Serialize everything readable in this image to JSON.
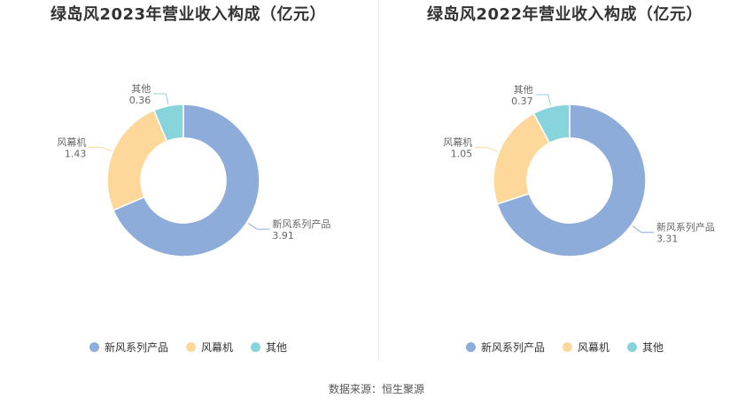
{
  "colors": {
    "新风系列产品": "#8eacda",
    "风幕机": "#fdd89a",
    "其他": "#88d4dc"
  },
  "chart_data": [
    {
      "type": "pie",
      "variant": "donut",
      "title": "绿岛风2023年营业收入构成（亿元）",
      "slices": [
        {
          "name": "新风系列产品",
          "value": 3.91,
          "value_label": "3.91"
        },
        {
          "name": "风幕机",
          "value": 1.43,
          "value_label": "1.43"
        },
        {
          "name": "其他",
          "value": 0.36,
          "value_label": "0.36"
        }
      ],
      "legend": [
        "新风系列产品",
        "风幕机",
        "其他"
      ],
      "legend_position": "bottom"
    },
    {
      "type": "pie",
      "variant": "donut",
      "title": "绿岛风2022年营业收入构成（亿元）",
      "slices": [
        {
          "name": "新风系列产品",
          "value": 3.31,
          "value_label": "3.31"
        },
        {
          "name": "风幕机",
          "value": 1.05,
          "value_label": "1.05"
        },
        {
          "name": "其他",
          "value": 0.37,
          "value_label": "0.37"
        }
      ],
      "legend": [
        "新风系列产品",
        "风幕机",
        "其他"
      ],
      "legend_position": "bottom"
    }
  ],
  "source": "数据来源：恒生聚源"
}
